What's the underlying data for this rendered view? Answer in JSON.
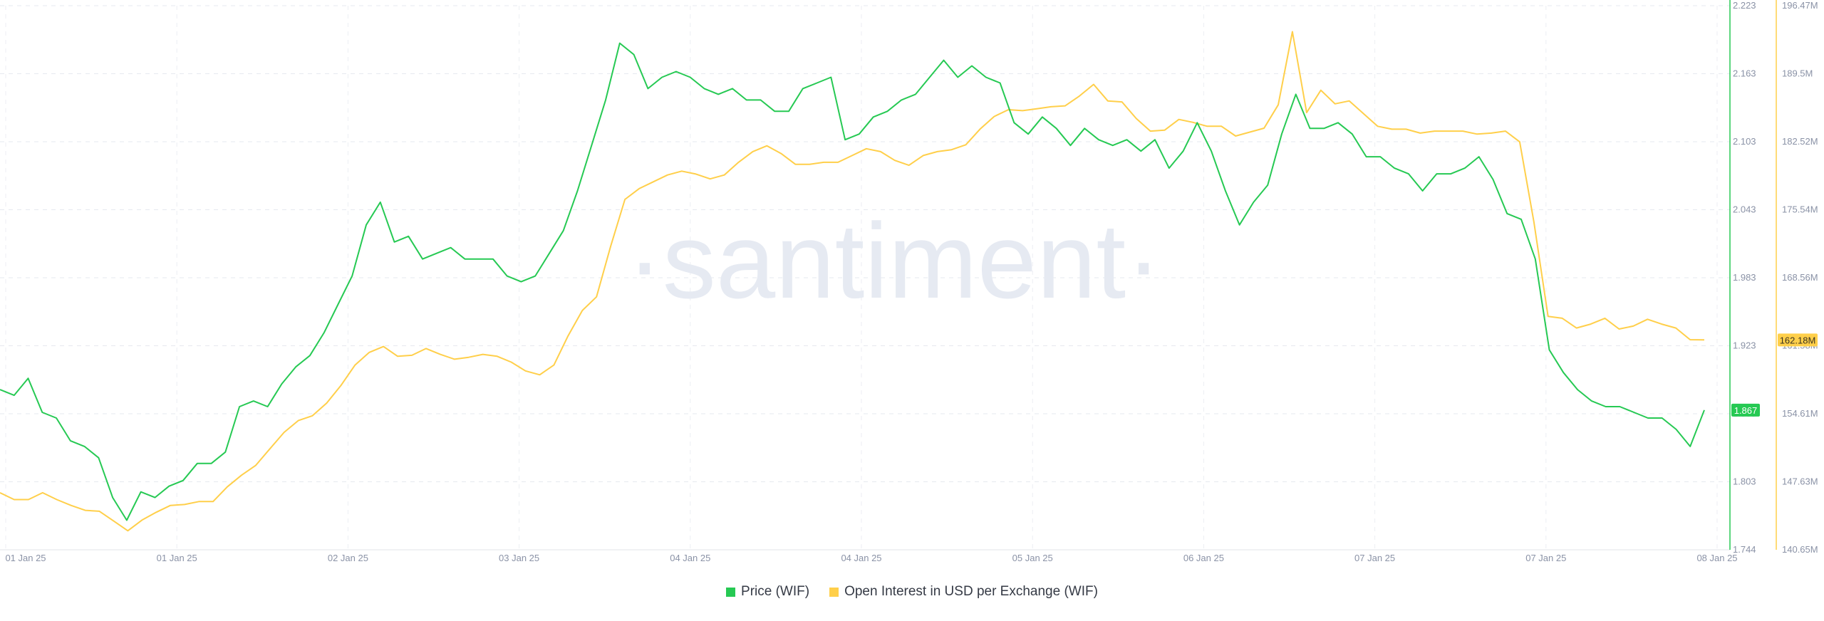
{
  "chart_data": {
    "type": "line",
    "watermark": "·santiment·",
    "x_ticks": [
      "01 Jan 25",
      "01 Jan 25",
      "02 Jan 25",
      "03 Jan 25",
      "04 Jan 25",
      "04 Jan 25",
      "05 Jan 25",
      "06 Jan 25",
      "07 Jan 25",
      "07 Jan 25",
      "08 Jan 25"
    ],
    "y_left": {
      "ticks": [
        "1.744",
        "1.803",
        "1.863",
        "1.923",
        "1.983",
        "2.043",
        "2.103",
        "2.163",
        "2.223"
      ],
      "min": 1.744,
      "max": 2.223,
      "color": "#26c953"
    },
    "y_right": {
      "ticks": [
        "140.65M",
        "147.63M",
        "154.61M",
        "161.58M",
        "168.56M",
        "175.54M",
        "182.52M",
        "189.5M",
        "196.47M"
      ],
      "min": 140.65,
      "max": 196.47,
      "unit": "M",
      "color": "#ffcf4a"
    },
    "series": [
      {
        "name": "Price (WIF)",
        "color": "#26c953",
        "axis": "left",
        "last_label": "1.867",
        "values": [
          1.885,
          1.88,
          1.895,
          1.865,
          1.86,
          1.84,
          1.835,
          1.825,
          1.79,
          1.77,
          1.795,
          1.79,
          1.8,
          1.805,
          1.82,
          1.82,
          1.83,
          1.87,
          1.875,
          1.87,
          1.89,
          1.905,
          1.915,
          1.935,
          1.96,
          1.985,
          2.03,
          2.05,
          2.015,
          2.02,
          2.0,
          2.005,
          2.01,
          2.0,
          2.0,
          2.0,
          1.985,
          1.98,
          1.985,
          2.005,
          2.025,
          2.06,
          2.1,
          2.14,
          2.19,
          2.18,
          2.15,
          2.16,
          2.165,
          2.16,
          2.15,
          2.145,
          2.15,
          2.14,
          2.14,
          2.13,
          2.13,
          2.15,
          2.155,
          2.16,
          2.105,
          2.11,
          2.125,
          2.13,
          2.14,
          2.145,
          2.16,
          2.175,
          2.16,
          2.17,
          2.16,
          2.155,
          2.12,
          2.11,
          2.125,
          2.115,
          2.1,
          2.115,
          2.105,
          2.1,
          2.105,
          2.095,
          2.105,
          2.08,
          2.095,
          2.12,
          2.095,
          2.06,
          2.03,
          2.05,
          2.065,
          2.11,
          2.145,
          2.115,
          2.115,
          2.12,
          2.11,
          2.09,
          2.09,
          2.08,
          2.075,
          2.06,
          2.075,
          2.075,
          2.08,
          2.09,
          2.07,
          2.04,
          2.035,
          2.0,
          1.92,
          1.9,
          1.885,
          1.875,
          1.87,
          1.87,
          1.865,
          1.86,
          1.86,
          1.85,
          1.835,
          1.867
        ]
      },
      {
        "name": "Open Interest in USD per Exchange (WIF)",
        "color": "#ffcf4a",
        "axis": "right",
        "last_label": "162.18M",
        "values": [
          146.5,
          145.8,
          145.8,
          146.5,
          145.8,
          145.2,
          144.7,
          144.6,
          143.6,
          142.6,
          143.7,
          144.5,
          145.2,
          145.3,
          145.6,
          145.6,
          147.1,
          148.3,
          149.3,
          151.0,
          152.7,
          153.9,
          154.4,
          155.7,
          157.5,
          159.6,
          160.9,
          161.5,
          160.5,
          160.6,
          161.3,
          160.7,
          160.2,
          160.4,
          160.7,
          160.5,
          159.9,
          159.0,
          158.6,
          159.6,
          162.6,
          165.2,
          166.6,
          171.8,
          176.6,
          177.7,
          178.4,
          179.1,
          179.5,
          179.2,
          178.7,
          179.1,
          180.4,
          181.5,
          182.1,
          181.3,
          180.2,
          180.2,
          180.4,
          180.4,
          181.1,
          181.8,
          181.5,
          180.6,
          180.1,
          181.1,
          181.5,
          181.7,
          182.2,
          183.8,
          185.1,
          185.8,
          185.7,
          185.9,
          186.1,
          186.2,
          187.2,
          188.4,
          186.7,
          186.6,
          184.9,
          183.6,
          183.7,
          184.8,
          184.5,
          184.1,
          184.1,
          183.1,
          183.5,
          183.9,
          186.3,
          193.8,
          185.5,
          187.8,
          186.4,
          186.7,
          185.4,
          184.1,
          183.8,
          183.8,
          183.4,
          183.6,
          183.6,
          183.6,
          183.3,
          183.4,
          183.6,
          182.5,
          174.3,
          164.6,
          164.4,
          163.4,
          163.8,
          164.4,
          163.3,
          163.6,
          164.3,
          163.8,
          163.4,
          162.2,
          162.18
        ]
      }
    ],
    "legend_position": "bottom-center",
    "grid": true
  }
}
